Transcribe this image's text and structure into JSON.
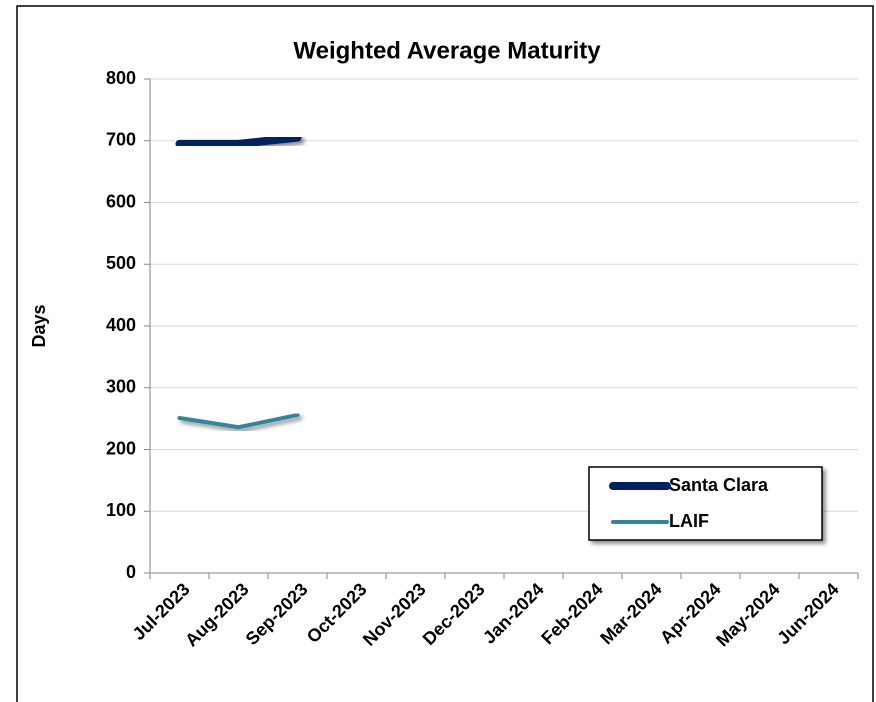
{
  "chart_data": {
    "type": "line",
    "title": "Weighted Average Maturity",
    "ylabel": "Days",
    "categories": [
      "Jul-2023",
      "Aug-2023",
      "Sep-2023",
      "Oct-2023",
      "Nov-2023",
      "Dec-2023",
      "Jan-2024",
      "Feb-2024",
      "Mar-2024",
      "Apr-2024",
      "May-2024",
      "Jun-2024"
    ],
    "series": [
      {
        "name": "Santa Clara",
        "color": "#002060",
        "values": [
          695,
          695,
          705,
          null,
          null,
          null,
          null,
          null,
          null,
          null,
          null,
          null
        ]
      },
      {
        "name": "LAIF",
        "color": "#31859c",
        "values": [
          251,
          236,
          256,
          null,
          null,
          null,
          null,
          null,
          null,
          null,
          null,
          null
        ]
      }
    ],
    "ylim": [
      0,
      800
    ],
    "yticks": [
      0,
      100,
      200,
      300,
      400,
      500,
      600,
      700,
      800
    ],
    "grid": true,
    "legend": "lower right"
  }
}
